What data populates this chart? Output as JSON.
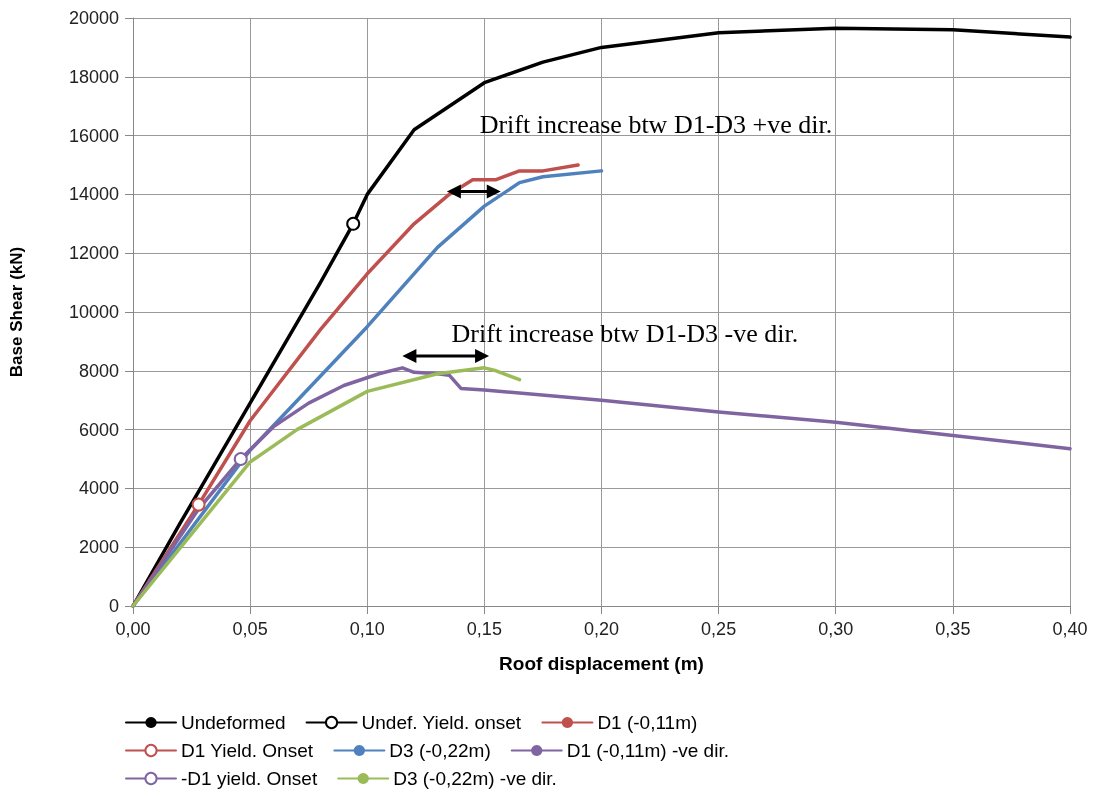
{
  "chart_data": {
    "type": "line",
    "xlabel": "Roof displacement (m)",
    "ylabel": "Base Shear (kN)",
    "xlim": [
      0,
      0.4
    ],
    "xticks": [
      {
        "value": 0,
        "label": "0,00"
      },
      {
        "value": 0.05,
        "label": "0,05"
      },
      {
        "value": 0.1,
        "label": "0,10"
      },
      {
        "value": 0.15,
        "label": "0,15"
      },
      {
        "value": 0.2,
        "label": "0,20"
      },
      {
        "value": 0.25,
        "label": "0,25"
      },
      {
        "value": 0.3,
        "label": "0,30"
      },
      {
        "value": 0.35,
        "label": "0,35"
      },
      {
        "value": 0.4,
        "label": "0,40"
      }
    ],
    "ylim": [
      0,
      20000
    ],
    "yticks": [
      0,
      2000,
      4000,
      6000,
      8000,
      10000,
      12000,
      14000,
      16000,
      18000,
      20000
    ],
    "grid": true,
    "legend": "bottom",
    "marker": "none",
    "line_style": "solid",
    "annotations": [
      "Drift increase btw D1-D3 +ve dir.",
      "Drift increase btw D1-D3 -ve dir."
    ],
    "series": [
      {
        "name": "Undeformed",
        "color": "#000000",
        "x": [
          0,
          0.02,
          0.05,
          0.08,
          0.094,
          0.1,
          0.12,
          0.15,
          0.175,
          0.2,
          0.25,
          0.3,
          0.35,
          0.4
        ],
        "values": [
          0,
          2800,
          6900,
          11000,
          13000,
          14000,
          16200,
          17800,
          18500,
          19000,
          19500,
          19650,
          19600,
          19350
        ]
      },
      {
        "name": "Undef. Yield. onset",
        "color": "#000000",
        "marker": "circle",
        "x": [
          0.094
        ],
        "values": [
          13000
        ]
      },
      {
        "name": "D1 (-0,11m)",
        "color": "#c0504d",
        "x": [
          0,
          0.028,
          0.05,
          0.08,
          0.1,
          0.12,
          0.135,
          0.145,
          0.155,
          0.165,
          0.175,
          0.19
        ],
        "values": [
          0,
          3450,
          6300,
          9400,
          11300,
          13000,
          14000,
          14500,
          14500,
          14800,
          14800,
          15000
        ]
      },
      {
        "name": "D1 Yield. Onset",
        "color": "#c0504d",
        "marker": "circle",
        "x": [
          0.028
        ],
        "values": [
          3450
        ]
      },
      {
        "name": "D3 (-0,22m)",
        "color": "#4f81bd",
        "x": [
          0,
          0.05,
          0.1,
          0.13,
          0.15,
          0.165,
          0.175,
          0.2
        ],
        "values": [
          0,
          5300,
          9500,
          12200,
          13600,
          14400,
          14600,
          14800
        ]
      },
      {
        "name": "D1 (-0,11m) -ve dir.",
        "color": "#8064a2",
        "x": [
          0,
          0.028,
          0.046,
          0.06,
          0.075,
          0.09,
          0.105,
          0.115,
          0.12,
          0.13,
          0.135,
          0.14,
          0.15,
          0.2,
          0.25,
          0.3,
          0.35,
          0.4
        ],
        "values": [
          0,
          3300,
          5000,
          6100,
          6900,
          7500,
          7900,
          8100,
          7950,
          7900,
          7850,
          7400,
          7350,
          7000,
          6600,
          6250,
          5800,
          5350
        ]
      },
      {
        "name": "-D1 yield. Onset",
        "color": "#8064a2",
        "marker": "circle",
        "x": [
          0.046
        ],
        "values": [
          5000
        ]
      },
      {
        "name": "D3 (-0,22m) -ve dir.",
        "color": "#9bbb59",
        "x": [
          0,
          0.05,
          0.07,
          0.1,
          0.13,
          0.15,
          0.155,
          0.165
        ],
        "values": [
          0,
          4900,
          6000,
          7300,
          7900,
          8100,
          8000,
          7700
        ]
      }
    ]
  }
}
